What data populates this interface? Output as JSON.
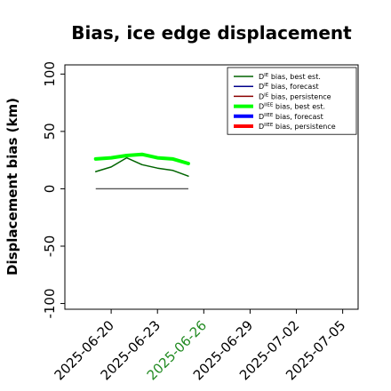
{
  "chart_data": {
    "type": "line",
    "title": "Bias, ice edge displacement",
    "xlabel": "",
    "ylabel": "Displacement bias (km)",
    "ylim": [
      -105,
      108
    ],
    "xlim": [
      "2025-06-17",
      "2025-07-06"
    ],
    "yticks": [
      -100,
      -50,
      0,
      50,
      100
    ],
    "xticks": [
      "2025-06-20",
      "2025-06-23",
      "2025-06-26",
      "2025-06-29",
      "2025-07-02",
      "2025-07-05"
    ],
    "highlighted_xtick": "2025-06-26",
    "highlight_color": "#228b22",
    "grid": false,
    "legend_position": "top-right",
    "x": [
      "2025-06-19",
      "2025-06-20",
      "2025-06-21",
      "2025-06-22",
      "2025-06-23",
      "2025-06-24",
      "2025-06-25"
    ],
    "series": [
      {
        "name": "D^IE bias, best est.",
        "sup": "IE",
        "label_rest": "bias, best est.",
        "color": "#006400",
        "width": 1.5,
        "values": [
          15,
          19,
          27,
          21,
          18,
          16,
          11
        ]
      },
      {
        "name": "D^IE bias, forecast",
        "sup": "IE",
        "label_rest": "bias, forecast",
        "color": "#00008b",
        "width": 1.5,
        "values": null
      },
      {
        "name": "D^IE bias, persistence",
        "sup": "IE",
        "label_rest": "bias, persistence",
        "color": "#8b0000",
        "width": 1.5,
        "values": null
      },
      {
        "name": "D^IIEE bias, best est.",
        "sup": "IIEE",
        "label_rest": "bias, best est.",
        "color": "#00ff00",
        "width": 4,
        "values": [
          26,
          27,
          29,
          30,
          27,
          26,
          22
        ]
      },
      {
        "name": "D^IIEE bias, forecast",
        "sup": "IIEE",
        "label_rest": "bias, forecast",
        "color": "#0000ff",
        "width": 4,
        "values": null
      },
      {
        "name": "D^IIEE bias, persistence",
        "sup": "IIEE",
        "label_rest": "bias, persistence",
        "color": "#ff0000",
        "width": 4,
        "values": null
      }
    ],
    "zero_line": {
      "color": "#555555",
      "x": [
        "2025-06-19",
        "2025-06-25"
      ],
      "values": [
        0,
        0
      ]
    }
  }
}
